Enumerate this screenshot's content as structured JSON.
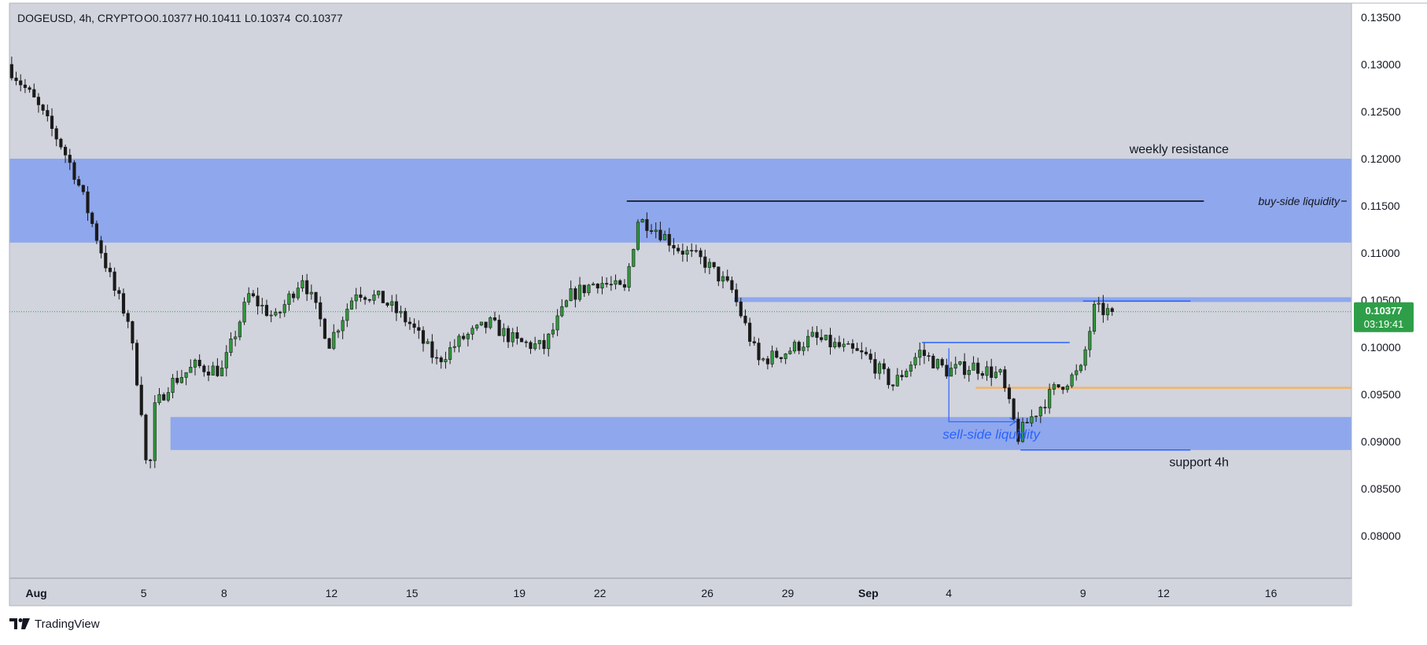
{
  "header": {
    "symbol": "DOGEUSD, 4h, CRYPTO",
    "ohlc": [
      {
        "label": "O",
        "value": "0.10377"
      },
      {
        "label": "H",
        "value": "0.10411"
      },
      {
        "label": "L",
        "value": "0.10374"
      },
      {
        "label": "C",
        "value": "0.10377"
      }
    ]
  },
  "price_badge": {
    "price": "0.10377",
    "countdown": "03:19:41",
    "color": "#2e9f48"
  },
  "footer": {
    "brand": "TradingView"
  },
  "colors": {
    "background": "#d1d4dc",
    "zone": "#8fa7ec",
    "bull": "#2f9a3a",
    "bear": "#1a1a1a",
    "blue_line": "#2962ff",
    "orange_line": "#f4b26a",
    "annotation_blue": "#2962ff"
  },
  "chart_data": {
    "type": "candlestick",
    "title": "DOGEUSD, 4h, CRYPTO",
    "y_axis": {
      "range": [
        0.0755,
        0.1365
      ],
      "ticks": [
        "0.13500",
        "0.13000",
        "0.12500",
        "0.12000",
        "0.11500",
        "0.11000",
        "0.10500",
        "0.10000",
        "0.09500",
        "0.09000",
        "0.08500",
        "0.08000"
      ]
    },
    "x_axis": {
      "range_days": [
        "2024-07-31",
        "2024-09-19"
      ],
      "ticks": [
        {
          "label": "Aug",
          "date": "2024-08-01"
        },
        {
          "label": "5",
          "date": "2024-08-05"
        },
        {
          "label": "8",
          "date": "2024-08-08"
        },
        {
          "label": "12",
          "date": "2024-08-12"
        },
        {
          "label": "15",
          "date": "2024-08-15"
        },
        {
          "label": "19",
          "date": "2024-08-19"
        },
        {
          "label": "22",
          "date": "2024-08-22"
        },
        {
          "label": "26",
          "date": "2024-08-26"
        },
        {
          "label": "29",
          "date": "2024-08-29"
        },
        {
          "label": "Sep",
          "date": "2024-09-01"
        },
        {
          "label": "4",
          "date": "2024-09-04"
        },
        {
          "label": "9",
          "date": "2024-09-09"
        },
        {
          "label": "12",
          "date": "2024-09-12"
        },
        {
          "label": "16",
          "date": "2024-09-16"
        }
      ]
    },
    "series_anchor_path": [
      [
        "2024-07-31",
        0.13
      ],
      [
        "2024-08-01",
        0.1262
      ],
      [
        "2024-08-02",
        0.1215
      ],
      [
        "2024-08-02T12:00",
        0.1185
      ],
      [
        "2024-08-03",
        0.1145
      ],
      [
        "2024-08-04",
        0.106
      ],
      [
        "2024-08-04T12:00",
        0.103
      ],
      [
        "2024-08-05",
        0.0935
      ],
      [
        "2024-08-05T06:00",
        0.085
      ],
      [
        "2024-08-05T12:00",
        0.0935
      ],
      [
        "2024-08-06",
        0.096
      ],
      [
        "2024-08-07",
        0.098
      ],
      [
        "2024-08-08",
        0.0975
      ],
      [
        "2024-08-09",
        0.1055
      ],
      [
        "2024-08-10",
        0.103
      ],
      [
        "2024-08-11",
        0.1075
      ],
      [
        "2024-08-12",
        0.1005
      ],
      [
        "2024-08-13",
        0.106
      ],
      [
        "2024-08-14",
        0.105
      ],
      [
        "2024-08-15",
        0.1025
      ],
      [
        "2024-08-16",
        0.0985
      ],
      [
        "2024-08-17",
        0.101
      ],
      [
        "2024-08-18",
        0.1025
      ],
      [
        "2024-08-19",
        0.1005
      ],
      [
        "2024-08-20",
        0.1
      ],
      [
        "2024-08-21",
        0.1055
      ],
      [
        "2024-08-22",
        0.107
      ],
      [
        "2024-08-23",
        0.106
      ],
      [
        "2024-08-23T12:00",
        0.1135
      ],
      [
        "2024-08-24",
        0.113
      ],
      [
        "2024-08-25",
        0.1105
      ],
      [
        "2024-08-26",
        0.109
      ],
      [
        "2024-08-27",
        0.106
      ],
      [
        "2024-08-28",
        0.0985
      ],
      [
        "2024-08-29",
        0.0995
      ],
      [
        "2024-08-30",
        0.101
      ],
      [
        "2024-08-31",
        0.1
      ],
      [
        "2024-09-01",
        0.099
      ],
      [
        "2024-09-02",
        0.096
      ],
      [
        "2024-09-03",
        0.0995
      ],
      [
        "2024-09-04",
        0.0975
      ],
      [
        "2024-09-05",
        0.098
      ],
      [
        "2024-09-06",
        0.097
      ],
      [
        "2024-09-06T16:00",
        0.0905
      ],
      [
        "2024-09-07",
        0.092
      ],
      [
        "2024-09-08",
        0.0955
      ],
      [
        "2024-09-09",
        0.0975
      ],
      [
        "2024-09-09T12:00",
        0.104
      ],
      [
        "2024-09-10",
        0.10377
      ]
    ],
    "zones": [
      {
        "name": "weekly resistance",
        "from": 0.1111,
        "to": 0.12,
        "x_start": "2024-07-31",
        "x_end": "axis",
        "label": "weekly resistance"
      },
      {
        "name": "resistance-band",
        "from": 0.1048,
        "to": 0.1053,
        "x_start": "2024-08-27",
        "x_end": "axis"
      },
      {
        "name": "support 4h",
        "from": 0.0891,
        "to": 0.0926,
        "x_start": "2024-08-06",
        "x_end": "axis",
        "label": "support 4h"
      }
    ],
    "lines": [
      {
        "name": "buy-side liquidity",
        "price": 0.1155,
        "from": "2024-08-23",
        "to": "2024-09-13T12:00",
        "color": "#000000",
        "label": "buy-side liquidity"
      },
      {
        "name": "range-high",
        "price": 0.1005,
        "from": "2024-09-03",
        "to": "2024-09-08T12:00",
        "color": "#2962ff"
      },
      {
        "name": "breakout-level",
        "price": 0.1049,
        "from": "2024-09-09",
        "to": "2024-09-13",
        "color": "#2962ff"
      },
      {
        "name": "mid-level",
        "price": 0.0957,
        "from": "2024-09-05",
        "to": "2024-09-19",
        "color": "#f4b26a"
      },
      {
        "name": "support-line",
        "price": 0.0891,
        "from": "2024-09-06T16:00",
        "to": "2024-09-13",
        "color": "#2962ff"
      },
      {
        "name": "current-price",
        "price": 0.10377,
        "from": "2024-07-31",
        "to": "axis",
        "color": "#2e9f48",
        "style": "dotted"
      }
    ],
    "annotations": [
      {
        "text": "sell-side liquidity",
        "price": 0.0907,
        "date": "2024-09-05",
        "color": "#2962ff",
        "italic": true
      },
      {
        "text": "weekly resistance",
        "price": 0.121,
        "date": "2024-09-12"
      },
      {
        "text": "buy-side liquidity",
        "price": 0.1155,
        "date": "2024-09-15"
      },
      {
        "text": "support 4h",
        "price": 0.0878,
        "date": "2024-09-12"
      }
    ],
    "arrow": {
      "from_date": "2024-09-04",
      "to_date": "2024-09-06T12:00",
      "from_price": 0.0999,
      "low_price": 0.0921
    }
  }
}
